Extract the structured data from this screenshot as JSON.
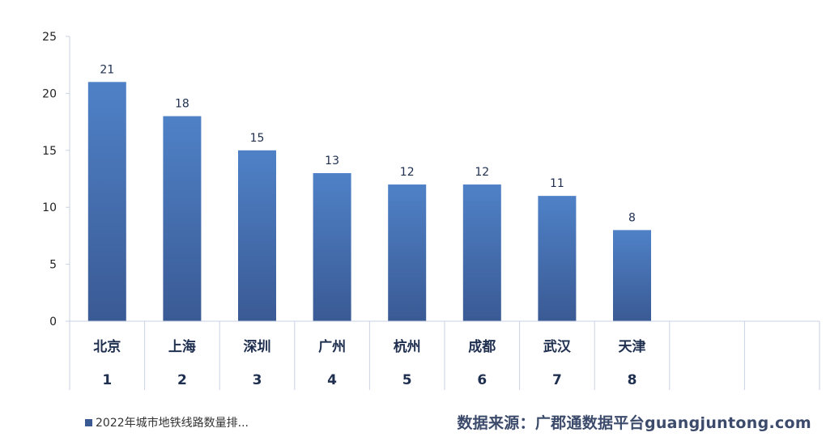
{
  "chart_data": {
    "type": "bar",
    "categories": [
      "北京",
      "上海",
      "深圳",
      "广州",
      "杭州",
      "成都",
      "武汉",
      "天津"
    ],
    "ranks": [
      "1",
      "2",
      "3",
      "4",
      "5",
      "6",
      "7",
      "8"
    ],
    "values": [
      21,
      18,
      15,
      13,
      12,
      12,
      11,
      8
    ],
    "ylim": [
      0,
      25
    ],
    "yticks": [
      0,
      5,
      10,
      15,
      20,
      25
    ],
    "empty_slots": 2,
    "legend": "2022年城市地铁线路数量排...",
    "legend_position": "bottom-left",
    "grid": false,
    "colors": {
      "bar_top": "#4f81c7",
      "bar_bottom": "#3a5a94",
      "axis": "#c9d3e3",
      "text": "#1f2f4f"
    }
  },
  "footer": {
    "source": "数据来源：广郡通数据平台guangjuntong.com"
  }
}
